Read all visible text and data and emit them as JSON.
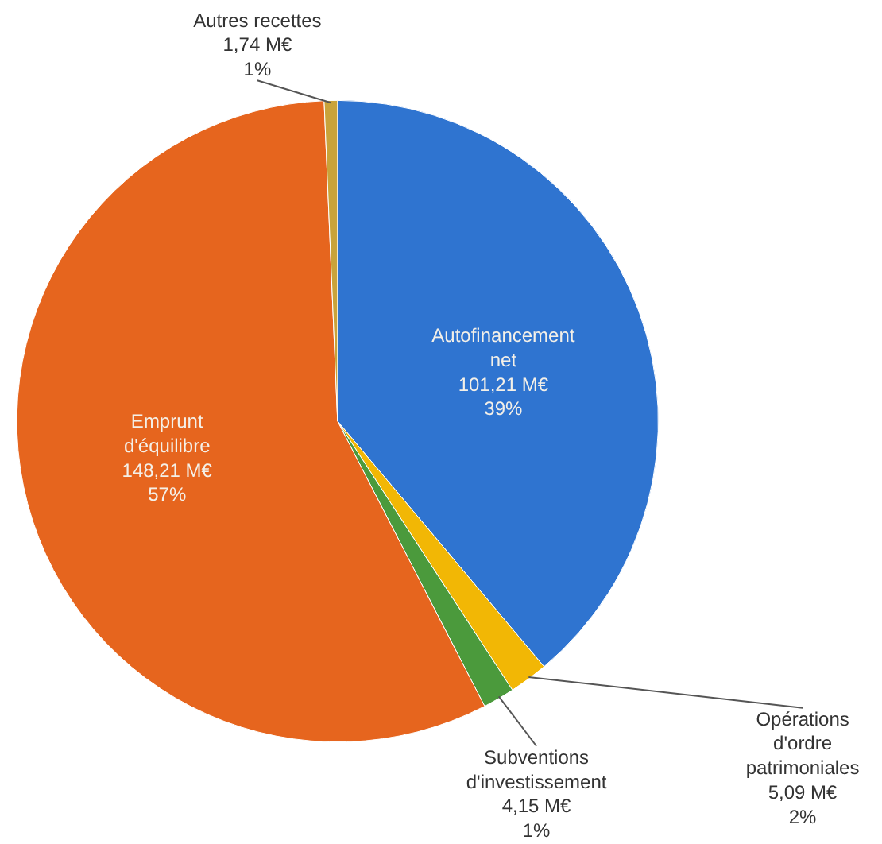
{
  "chart_data": {
    "type": "pie",
    "categories": [
      "Autofinancement net",
      "Opérations d'ordre patrimoniales",
      "Subventions d'investissement",
      "Emprunt d'équilibre",
      "Autres recettes"
    ],
    "values": [
      101.21,
      5.09,
      4.15,
      148.21,
      1.74
    ],
    "colors": [
      "#2f74d0",
      "#f2b705",
      "#4b9a3c",
      "#e6651e",
      "#c9a33a"
    ],
    "value_labels": [
      "101,21 M€\n39%",
      "5,09 M€\n2%",
      "4,15 M€\n1%",
      "148,21 M€\n57%",
      "1,74 M€\n1%"
    ]
  }
}
